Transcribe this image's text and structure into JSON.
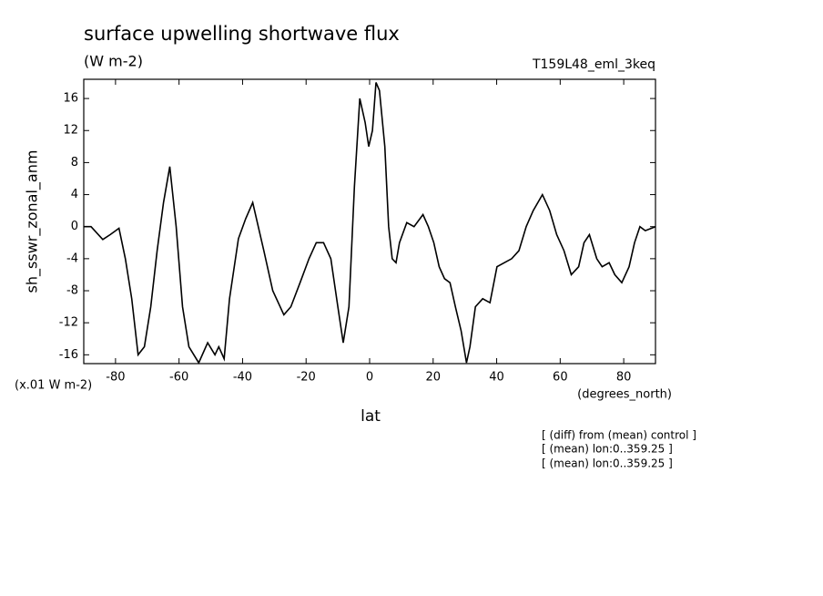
{
  "chart_data": {
    "type": "line",
    "title": "surface upwelling shortwave flux",
    "subtitle": "(W m-2)",
    "run_label": "T159L48_eml_3keq",
    "y_label": "sh_sswr_zonal_anm",
    "y_unit": "(x.01 W m-2)",
    "x_unit": "(degrees_north)",
    "x_label": "lat",
    "notes": [
      "[ (diff) from (mean) control ]",
      "[ (mean) lon:0..359.25 ]",
      "[ (mean) lon:0..359.25 ]"
    ],
    "xlim": [
      -90,
      90
    ],
    "ylim": [
      -17.1,
      18.4
    ],
    "xticks": [
      -80,
      -60,
      -40,
      -20,
      0,
      20,
      40,
      60,
      80
    ],
    "yticks": [
      -16,
      -12,
      -8,
      -4,
      0,
      4,
      8,
      12,
      16
    ],
    "x": [
      -90,
      -87.7,
      -84,
      -81.7,
      -78.9,
      -76.9,
      -74.9,
      -72.9,
      -70.9,
      -68.9,
      -66.9,
      -64.9,
      -62.9,
      -60.9,
      -58.9,
      -56.9,
      -53.8,
      -51.0,
      -48.7,
      -47.5,
      -45.8,
      -44.1,
      -41.3,
      -39.0,
      -36.8,
      -33.3,
      -30.5,
      -27.0,
      -24.8,
      -21.9,
      -19.1,
      -16.8,
      -14.5,
      -12.2,
      -10.0,
      -8.3,
      -6.5,
      -4.8,
      -3.1,
      -1.4,
      -0.3,
      0.9,
      2.0,
      3.1,
      4.8,
      6.0,
      7.1,
      8.3,
      9.4,
      11.7,
      14.0,
      16.8,
      18.5,
      20.2,
      21.9,
      23.6,
      25.3,
      27.0,
      28.8,
      30.5,
      31.6,
      33.3,
      35.6,
      37.9,
      40.1,
      42.4,
      44.7,
      47.0,
      49.3,
      51.5,
      54.4,
      56.7,
      58.9,
      61.2,
      63.5,
      65.8,
      67.5,
      69.2,
      71.5,
      73.2,
      75.4,
      77.2,
      79.4,
      81.7,
      83.4,
      85.1,
      86.8,
      90
    ],
    "series": [
      {
        "name": "sh_sswr_zonal_anm",
        "color": "#000000",
        "values": [
          0,
          0,
          -1.6,
          -1,
          -0.2,
          -4,
          -9,
          -16,
          -15,
          -10,
          -3,
          3,
          7.5,
          0,
          -10,
          -15,
          -17,
          -14.5,
          -16,
          -15,
          -16.5,
          -9,
          -1.5,
          1,
          3,
          -3,
          -8,
          -11,
          -10,
          -7,
          -4,
          -2,
          -2,
          -4,
          -10,
          -14.5,
          -10,
          5,
          16,
          13,
          10,
          12,
          18,
          17,
          10,
          0,
          -4,
          -4.5,
          -2,
          0.5,
          0,
          1.5,
          0,
          -2,
          -5,
          -6.5,
          -7,
          -10,
          -13,
          -17,
          -15,
          -10,
          -9,
          -9.5,
          -5,
          -4.5,
          -4,
          -3,
          0,
          2,
          4,
          2,
          -1,
          -3,
          -6,
          -5,
          -2,
          -1,
          -4,
          -5,
          -4.5,
          -6,
          -7,
          -5,
          -2,
          0,
          -0.5,
          0
        ]
      }
    ]
  }
}
